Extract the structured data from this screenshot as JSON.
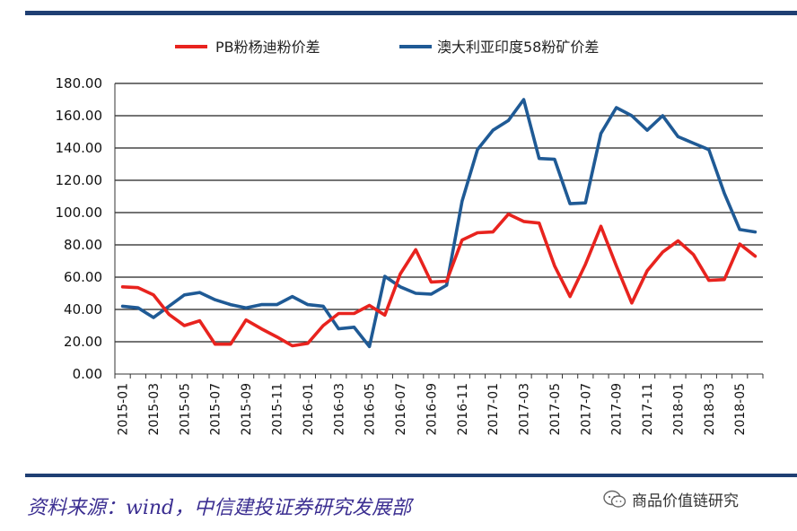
{
  "chart_data": {
    "type": "line",
    "title": "",
    "xlabel": "",
    "ylabel": "",
    "ylim": [
      0,
      180
    ],
    "yticks": [
      "0.00",
      "20.00",
      "40.00",
      "60.00",
      "80.00",
      "100.00",
      "120.00",
      "140.00",
      "160.00",
      "180.00"
    ],
    "grid": true,
    "legend": "top-center",
    "x": [
      "2015-01",
      "2015-02",
      "2015-03",
      "2015-04",
      "2015-05",
      "2015-06",
      "2015-07",
      "2015-08",
      "2015-09",
      "2015-10",
      "2015-11",
      "2015-12",
      "2016-01",
      "2016-02",
      "2016-03",
      "2016-04",
      "2016-05",
      "2016-06",
      "2016-07",
      "2016-08",
      "2016-09",
      "2016-10",
      "2016-11",
      "2016-12",
      "2017-01",
      "2017-02",
      "2017-03",
      "2017-04",
      "2017-05",
      "2017-06",
      "2017-07",
      "2017-08",
      "2017-09",
      "2017-10",
      "2017-11",
      "2017-12",
      "2018-01",
      "2018-02",
      "2018-03",
      "2018-04",
      "2018-05",
      "2018-06"
    ],
    "xtick_labels": [
      "2015-01",
      "2015-03",
      "2015-05",
      "2015-07",
      "2015-09",
      "2015-11",
      "2016-01",
      "2016-03",
      "2016-05",
      "2016-07",
      "2016-09",
      "2016-11",
      "2017-01",
      "2017-03",
      "2017-05",
      "2017-07",
      "2017-09",
      "2017-11",
      "2018-01",
      "2018-03",
      "2018-05"
    ],
    "series": [
      {
        "name": "PB粉杨迪粉价差",
        "color": "#e8231e",
        "values": [
          54,
          53.5,
          49,
          37,
          30,
          33,
          18.5,
          18.5,
          33.5,
          28,
          23,
          17.5,
          19,
          30,
          37.5,
          37.5,
          42.5,
          36.5,
          62,
          77,
          57,
          57.5,
          83,
          87.5,
          88,
          99,
          94.5,
          93.5,
          67,
          48,
          68,
          91.5,
          67,
          44,
          64,
          75.5,
          82.5,
          74,
          58,
          58.5,
          80.5,
          73
        ]
      },
      {
        "name": "澳大利亚印度58粉矿价差",
        "color": "#1f5a95",
        "values": [
          42,
          41,
          35,
          42,
          49,
          50.5,
          46,
          43,
          41,
          43,
          43,
          48,
          43,
          42,
          28,
          29,
          17,
          60.5,
          54,
          50,
          49.5,
          55,
          107,
          139,
          151,
          157,
          170,
          133.5,
          133,
          105.5,
          106,
          149,
          165,
          160,
          151,
          160,
          147,
          143,
          139,
          112,
          89.5,
          88
        ]
      }
    ]
  },
  "footer": {
    "source_text": "资料来源：wind，中信建投证券研究发展部",
    "wechat_icon": "wechat-icon",
    "wechat_label": "商品价值链研究"
  }
}
